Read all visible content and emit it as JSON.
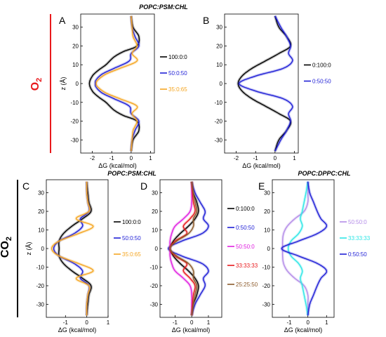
{
  "figure": {
    "title_top": "POPC:PSM:CHL",
    "title_mid_left": "POPC:PSM:CHL",
    "title_mid_right": "POPC:DPPC:CHL",
    "gas_o2": {
      "main": "O",
      "sub": "2",
      "color": "#e8191c"
    },
    "gas_co2": {
      "main": "CO",
      "sub": "2",
      "color": "#000000"
    }
  },
  "chart_data": [
    {
      "panel": "A",
      "type": "line",
      "xlabel": "ΔG (kcal/mol)",
      "ylabel": "z (Å)",
      "xlim": [
        -2.6,
        1.2
      ],
      "ylim": [
        -37,
        37
      ],
      "xticks": [
        -2,
        -1,
        0,
        1
      ],
      "yticks": [
        -30,
        -20,
        -10,
        0,
        10,
        20,
        30
      ],
      "grid": false,
      "legend": "right",
      "series": [
        {
          "name": "100:0:0",
          "color": "#000000",
          "z": [
            -36,
            -30,
            -25,
            -20,
            -17,
            -14,
            -10,
            -7,
            -4,
            0,
            4,
            7,
            10,
            14,
            17,
            20,
            25,
            30,
            36
          ],
          "dG": [
            0,
            0.1,
            0.4,
            0.3,
            -0.4,
            -0.9,
            -1.3,
            -1.7,
            -2,
            -2.15,
            -2,
            -1.7,
            -1.3,
            -0.9,
            -0.4,
            0.3,
            0.4,
            0.1,
            0
          ]
        },
        {
          "name": "50:0:50",
          "color": "#1f1fd6",
          "z": [
            -36,
            -30,
            -25,
            -20,
            -16,
            -12,
            -8,
            -5,
            -2,
            0,
            2,
            5,
            8,
            12,
            16,
            20,
            25,
            30,
            36
          ],
          "dG": [
            0,
            0.05,
            0.2,
            0.4,
            0,
            -0.1,
            -0.9,
            -1.5,
            -1.8,
            -1.85,
            -1.8,
            -1.5,
            -0.9,
            -0.1,
            0,
            0.4,
            0.2,
            0.05,
            0
          ]
        },
        {
          "name": "35:0:65",
          "color": "#f5a623",
          "z": [
            -36,
            -30,
            -25,
            -20,
            -16,
            -12,
            -8,
            -5,
            -2,
            0,
            2,
            5,
            8,
            12,
            16,
            20,
            25,
            30,
            36
          ],
          "dG": [
            0,
            0.05,
            0.1,
            0.3,
            0.05,
            0.3,
            -0.6,
            -1.3,
            -1.7,
            -1.8,
            -1.7,
            -1.3,
            -0.6,
            0.3,
            0.05,
            0.3,
            0.1,
            0.05,
            0
          ]
        }
      ]
    },
    {
      "panel": "B",
      "type": "line",
      "xlabel": "ΔG (kcal/mol)",
      "ylabel": "",
      "xlim": [
        -2.6,
        1.2
      ],
      "ylim": [
        -37,
        37
      ],
      "xticks": [
        -2,
        -1,
        0,
        1
      ],
      "yticks": [
        -30,
        -20,
        -10,
        0,
        10,
        20,
        30
      ],
      "grid": false,
      "legend": "right",
      "series": [
        {
          "name": "0:100:0",
          "color": "#000000",
          "z": [
            -36,
            -30,
            -25,
            -20,
            -16,
            -12,
            -8,
            -4,
            0,
            4,
            8,
            12,
            16,
            20,
            25,
            30,
            36
          ],
          "dG": [
            0,
            0.2,
            0.6,
            0.8,
            0.2,
            -0.5,
            -1.2,
            -1.7,
            -1.9,
            -1.7,
            -1.2,
            -0.5,
            0.2,
            0.8,
            0.6,
            0.2,
            0
          ]
        },
        {
          "name": "0:50:50",
          "color": "#1f1fd6",
          "z": [
            -36,
            -30,
            -25,
            -20,
            -16,
            -12,
            -8,
            -4,
            0,
            4,
            8,
            12,
            16,
            20,
            25,
            30,
            36
          ],
          "dG": [
            0,
            0.3,
            0.6,
            0.8,
            0.7,
            0.9,
            0.4,
            -1.0,
            -1.85,
            -1.0,
            0.4,
            0.9,
            0.7,
            0.8,
            0.6,
            0.3,
            0
          ]
        }
      ]
    },
    {
      "panel": "C",
      "type": "line",
      "xlabel": "ΔG (kcal/mol)",
      "ylabel": "z (Å)",
      "xlim": [
        -1.9,
        1.0
      ],
      "ylim": [
        -37,
        37
      ],
      "xticks": [
        -1,
        0,
        1
      ],
      "yticks": [
        -30,
        -20,
        -10,
        0,
        10,
        20,
        30
      ],
      "grid": false,
      "legend": "right",
      "series": [
        {
          "name": "100:0:0",
          "color": "#000000",
          "z": [
            -36,
            -30,
            -25,
            -20,
            -16,
            -12,
            -8,
            -4,
            0,
            4,
            8,
            12,
            16,
            20,
            25,
            30,
            36
          ],
          "dG": [
            0,
            0.05,
            0.1,
            0.2,
            -0.2,
            -0.7,
            -1.1,
            -1.3,
            -1.3,
            -1.3,
            -1.1,
            -0.7,
            -0.2,
            0.2,
            0.1,
            0.05,
            0
          ]
        },
        {
          "name": "50:0:50",
          "color": "#1f1fd6",
          "z": [
            -36,
            -30,
            -25,
            -20,
            -16,
            -12,
            -8,
            -4,
            0,
            4,
            8,
            12,
            16,
            20,
            25,
            30,
            36
          ],
          "dG": [
            0,
            0,
            0.05,
            0.1,
            -0.3,
            -0.2,
            -0.6,
            -1.3,
            -1.55,
            -1.3,
            -0.6,
            -0.2,
            -0.3,
            0.1,
            0.05,
            0,
            0
          ]
        },
        {
          "name": "35:0:65",
          "color": "#f5a623",
          "z": [
            -36,
            -30,
            -25,
            -20,
            -16,
            -12,
            -8,
            -4,
            0,
            4,
            8,
            12,
            16,
            20,
            25,
            30,
            36
          ],
          "dG": [
            0,
            0,
            0.05,
            0.1,
            -0.5,
            0.3,
            -0.4,
            -1.3,
            -1.65,
            -1.3,
            -0.4,
            0.3,
            -0.5,
            0.1,
            0.05,
            0,
            0
          ]
        }
      ]
    },
    {
      "panel": "D",
      "type": "line",
      "xlabel": "ΔG (kcal/mol)",
      "ylabel": "",
      "xlim": [
        -1.9,
        1.8
      ],
      "ylim": [
        -37,
        37
      ],
      "xticks": [
        -1,
        0,
        1
      ],
      "yticks": [
        -30,
        -20,
        -10,
        0,
        10,
        20,
        30
      ],
      "grid": false,
      "legend": "right",
      "series": [
        {
          "name": "0:100:0",
          "color": "#000000",
          "z": [
            -36,
            -30,
            -25,
            -20,
            -16,
            -12,
            -8,
            -4,
            0,
            4,
            8,
            12,
            16,
            20,
            25,
            30,
            36
          ],
          "dG": [
            0,
            0.1,
            0.3,
            0.4,
            0.2,
            -0.2,
            -0.7,
            -1.1,
            -1.3,
            -1.1,
            -0.7,
            -0.2,
            0.2,
            0.4,
            0.3,
            0.1,
            0
          ]
        },
        {
          "name": "0:50:50",
          "color": "#1f1fd6",
          "z": [
            -36,
            -30,
            -25,
            -20,
            -16,
            -12,
            -8,
            -4,
            0,
            4,
            8,
            12,
            16,
            20,
            25,
            30,
            36
          ],
          "dG": [
            0,
            0.2,
            0.5,
            0.8,
            0.7,
            1.0,
            0.6,
            -0.6,
            -1.4,
            -0.6,
            0.6,
            1.0,
            0.7,
            0.8,
            0.5,
            0.2,
            0
          ]
        },
        {
          "name": "50:50:0",
          "color": "#e020e0",
          "z": [
            -36,
            -30,
            -25,
            -20,
            -16,
            -12,
            -8,
            -4,
            0,
            4,
            8,
            12,
            16,
            20,
            25,
            30,
            36
          ],
          "dG": [
            0,
            0,
            0,
            -0.1,
            -0.5,
            -1.0,
            -1.2,
            -1.3,
            -1.3,
            -1.3,
            -1.2,
            -1.0,
            -0.5,
            -0.1,
            0,
            0,
            0
          ]
        },
        {
          "name": "33:33:33",
          "color": "#e8191c",
          "z": [
            -36,
            -30,
            -25,
            -20,
            -16,
            -12,
            -8,
            -4,
            0,
            4,
            8,
            12,
            16,
            20,
            25,
            30,
            36
          ],
          "dG": [
            0,
            0.05,
            0.1,
            0.2,
            -0.1,
            -0.5,
            -0.3,
            -1.0,
            -1.3,
            -1.0,
            -0.3,
            -0.5,
            -0.1,
            0.2,
            0.1,
            0.05,
            0
          ]
        },
        {
          "name": "25:25:50",
          "color": "#8b5a2b",
          "z": [
            -36,
            -30,
            -25,
            -20,
            -16,
            -12,
            -8,
            -4,
            0,
            4,
            8,
            12,
            16,
            20,
            25,
            30,
            36
          ],
          "dG": [
            0,
            0.1,
            0.2,
            0.3,
            0.1,
            0.1,
            -0.2,
            -0.9,
            -1.3,
            -0.9,
            -0.2,
            0.1,
            0.1,
            0.3,
            0.2,
            0.1,
            0
          ]
        }
      ]
    },
    {
      "panel": "E",
      "type": "line",
      "xlabel": "ΔG (kcal/mol)",
      "ylabel": "",
      "xlim": [
        -1.9,
        1.4
      ],
      "ylim": [
        -37,
        37
      ],
      "xticks": [
        -1,
        0,
        1
      ],
      "yticks": [
        -30,
        -20,
        -10,
        0,
        10,
        20,
        30
      ],
      "grid": false,
      "legend": "right",
      "series": [
        {
          "name": "50:50:0",
          "color": "#b48ce8",
          "z": [
            -36,
            -30,
            -25,
            -20,
            -16,
            -12,
            -8,
            -4,
            0,
            4,
            8,
            12,
            16,
            20,
            25,
            30,
            36
          ],
          "dG": [
            0,
            0,
            0,
            -0.2,
            -0.7,
            -1.1,
            -1.3,
            -1.35,
            -1.35,
            -1.35,
            -1.3,
            -1.1,
            -0.7,
            -0.2,
            0,
            0,
            0
          ]
        },
        {
          "name": "33:33:33",
          "color": "#2ee6e6",
          "z": [
            -36,
            -30,
            -25,
            -20,
            -16,
            -12,
            -8,
            -4,
            0,
            4,
            8,
            12,
            16,
            20,
            25,
            30,
            36
          ],
          "dG": [
            0,
            -0.1,
            -0.2,
            -0.3,
            -0.4,
            -0.3,
            -0.5,
            -0.9,
            -1.05,
            -0.9,
            -0.5,
            -0.3,
            -0.4,
            -0.3,
            -0.2,
            -0.1,
            0
          ]
        },
        {
          "name": "0:50:50",
          "color": "#1f1fd6",
          "z": [
            -36,
            -30,
            -25,
            -20,
            -16,
            -12,
            -8,
            -4,
            0,
            4,
            8,
            12,
            16,
            20,
            25,
            30,
            36
          ],
          "dG": [
            0,
            0.1,
            0.3,
            0.5,
            0.7,
            1.0,
            0.5,
            -0.5,
            -1.4,
            -0.5,
            0.5,
            1.0,
            0.7,
            0.5,
            0.3,
            0.1,
            0
          ]
        }
      ]
    }
  ]
}
